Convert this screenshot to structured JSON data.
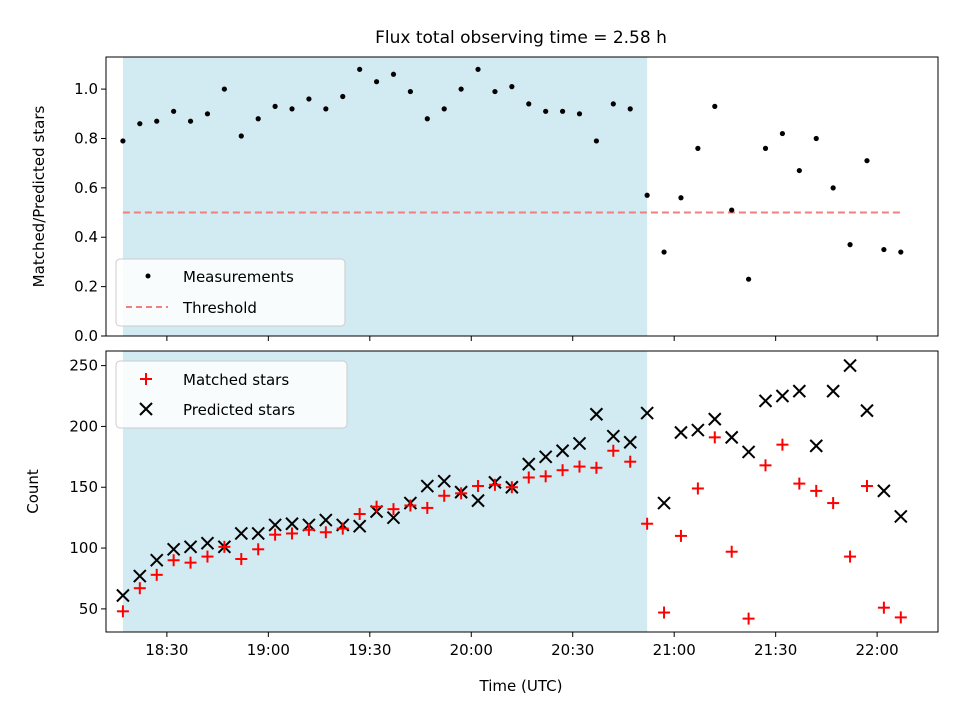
{
  "chart_data": {
    "title": "Flux total observing time = 2.58 h",
    "xlabel": "Time (UTC)",
    "x_unit": "HH:MM UTC",
    "xlim": [
      "18:12",
      "22:18"
    ],
    "x_ticks": [
      "18:30",
      "19:00",
      "19:30",
      "20:00",
      "20:30",
      "21:00",
      "21:30",
      "22:00"
    ],
    "observing_window": {
      "start": "18:17",
      "end": "20:52",
      "color": "#add8e6"
    },
    "panels": [
      {
        "type": "scatter",
        "ylabel": "Matched/Predicted stars",
        "ylim": [
          0,
          1.13
        ],
        "y_ticks": [
          "0.0",
          "0.2",
          "0.4",
          "0.6",
          "0.8",
          "1.0"
        ],
        "threshold": {
          "name": "Threshold",
          "value": 0.5,
          "color": "#f08080",
          "style": "dashed"
        },
        "series": [
          {
            "name": "Measurements",
            "marker": "dot",
            "color": "#000000",
            "x": [
              "18:17",
              "18:22",
              "18:27",
              "18:32",
              "18:37",
              "18:42",
              "18:47",
              "18:52",
              "18:57",
              "19:02",
              "19:07",
              "19:12",
              "19:17",
              "19:22",
              "19:27",
              "19:32",
              "19:37",
              "19:42",
              "19:47",
              "19:52",
              "19:57",
              "20:02",
              "20:07",
              "20:12",
              "20:17",
              "20:22",
              "20:27",
              "20:32",
              "20:37",
              "20:42",
              "20:47",
              "20:52",
              "20:57",
              "21:02",
              "21:07",
              "21:12",
              "21:17",
              "21:22",
              "21:27",
              "21:32",
              "21:37",
              "21:42",
              "21:47",
              "21:52",
              "21:57",
              "22:02",
              "22:07"
            ],
            "y": [
              0.79,
              0.86,
              0.87,
              0.91,
              0.87,
              0.9,
              1.0,
              0.81,
              0.88,
              0.93,
              0.92,
              0.96,
              0.92,
              0.97,
              1.08,
              1.03,
              1.06,
              0.99,
              0.88,
              0.92,
              1.0,
              1.08,
              0.99,
              1.01,
              0.94,
              0.91,
              0.91,
              0.9,
              0.79,
              0.94,
              0.92,
              0.57,
              0.34,
              0.56,
              0.76,
              0.93,
              0.51,
              0.23,
              0.76,
              0.82,
              0.67,
              0.8,
              0.6,
              0.37,
              0.71,
              0.35,
              0.34
            ]
          }
        ],
        "legend": {
          "placement": "lower-left",
          "entries": [
            "Measurements",
            "Threshold"
          ]
        }
      },
      {
        "type": "scatter",
        "ylabel": "Count",
        "ylim": [
          31,
          262
        ],
        "y_ticks": [
          "50",
          "100",
          "150",
          "200",
          "250"
        ],
        "series": [
          {
            "name": "Matched stars",
            "marker": "plus",
            "color": "#ff0000",
            "x": [
              "18:17",
              "18:22",
              "18:27",
              "18:32",
              "18:37",
              "18:42",
              "18:47",
              "18:52",
              "18:57",
              "19:02",
              "19:07",
              "19:12",
              "19:17",
              "19:22",
              "19:27",
              "19:32",
              "19:37",
              "19:42",
              "19:47",
              "19:52",
              "19:57",
              "20:02",
              "20:07",
              "20:12",
              "20:17",
              "20:22",
              "20:27",
              "20:32",
              "20:37",
              "20:42",
              "20:47",
              "20:52",
              "20:57",
              "21:02",
              "21:07",
              "21:12",
              "21:17",
              "21:22",
              "21:27",
              "21:32",
              "21:37",
              "21:42",
              "21:47",
              "21:52",
              "21:57",
              "22:02",
              "22:07"
            ],
            "y": [
              48,
              67,
              78,
              90,
              88,
              93,
              101,
              91,
              99,
              111,
              112,
              115,
              113,
              116,
              128,
              134,
              132,
              135,
              133,
              143,
              145,
              151,
              152,
              150,
              158,
              159,
              164,
              167,
              166,
              180,
              171,
              120,
              47,
              110,
              149,
              191,
              97,
              42,
              168,
              185,
              153,
              147,
              137,
              93,
              151,
              51,
              43
            ]
          },
          {
            "name": "Predicted stars",
            "marker": "x",
            "color": "#000000",
            "x": [
              "18:17",
              "18:22",
              "18:27",
              "18:32",
              "18:37",
              "18:42",
              "18:47",
              "18:52",
              "18:57",
              "19:02",
              "19:07",
              "19:12",
              "19:17",
              "19:22",
              "19:27",
              "19:32",
              "19:37",
              "19:42",
              "19:47",
              "19:52",
              "19:57",
              "20:02",
              "20:07",
              "20:12",
              "20:17",
              "20:22",
              "20:27",
              "20:32",
              "20:37",
              "20:42",
              "20:47",
              "20:52",
              "20:57",
              "21:02",
              "21:07",
              "21:12",
              "21:17",
              "21:22",
              "21:27",
              "21:32",
              "21:37",
              "21:42",
              "21:47",
              "21:52",
              "21:57",
              "22:02",
              "22:07"
            ],
            "y": [
              61,
              77,
              90,
              99,
              101,
              104,
              101,
              112,
              112,
              119,
              120,
              119,
              123,
              119,
              118,
              130,
              125,
              137,
              151,
              155,
              146,
              139,
              154,
              150,
              169,
              175,
              180,
              186,
              210,
              192,
              187,
              211,
              137,
              195,
              197,
              206,
              191,
              179,
              221,
              225,
              229,
              184,
              229,
              250,
              213,
              147,
              126
            ]
          }
        ],
        "legend": {
          "placement": "upper-left",
          "entries": [
            "Matched stars",
            "Predicted stars"
          ]
        }
      }
    ],
    "grid": false
  }
}
